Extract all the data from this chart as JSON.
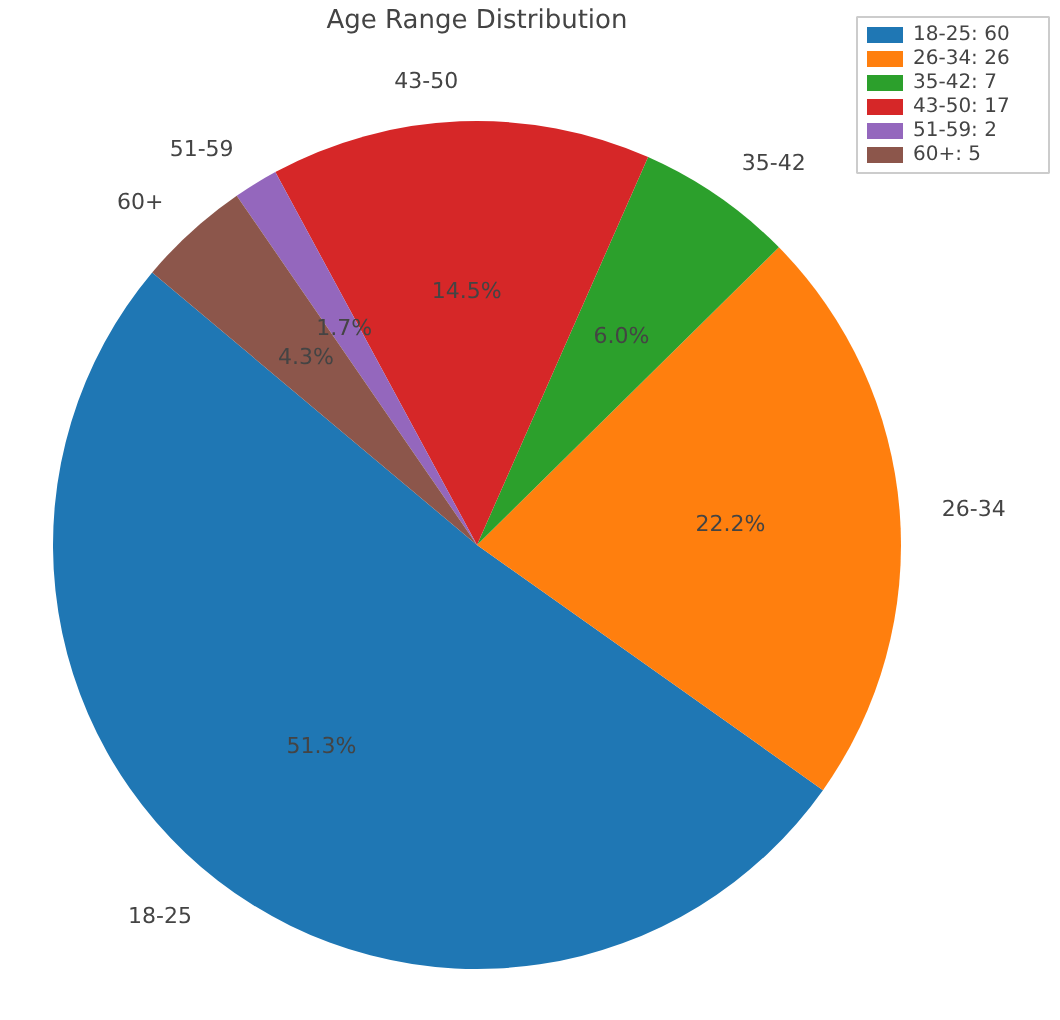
{
  "chart_data": {
    "type": "pie",
    "title": "Age Range Distribution",
    "categories": [
      "18-25: 60",
      "26-34: 26",
      "35-42: 7",
      "43-50: 17",
      "51-59: 2",
      "60+: 5"
    ],
    "annotations": [
      "18-25",
      "26-34",
      "35-42",
      "43-50",
      "51-59",
      "60+"
    ],
    "values": [
      51.3,
      22.2,
      6.0,
      14.5,
      1.7,
      4.3
    ],
    "colors": [
      "#1f77b4",
      "#ff7f0e",
      "#2ca02c",
      "#d62728",
      "#9467bd",
      "#8c564b"
    ],
    "value_labels": [
      "51.3%",
      "22.2%",
      "6.0%",
      "14.5%",
      "1.7%",
      "4.3%"
    ],
    "legend": "top right"
  }
}
